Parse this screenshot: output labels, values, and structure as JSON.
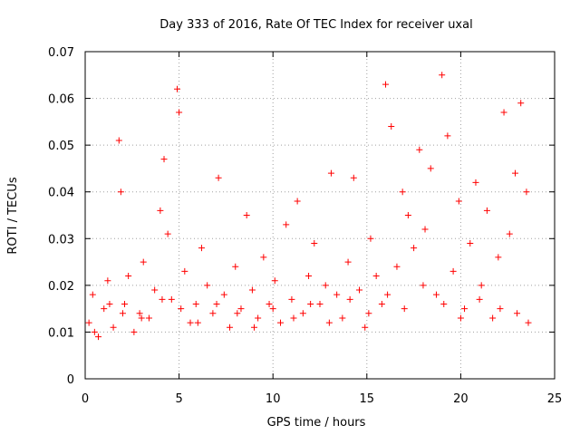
{
  "chart_data": {
    "type": "scatter",
    "title": "Day 333 of 2016, Rate Of TEC Index for receiver uxal",
    "xlabel": "GPS time / hours",
    "ylabel": "ROTI / TECUs",
    "xlim": [
      0,
      25
    ],
    "ylim": [
      0,
      0.07
    ],
    "x_ticks": [
      "0",
      "5",
      "10",
      "15",
      "20",
      "25"
    ],
    "y_ticks": [
      "0",
      "0.01",
      "0.02",
      "0.03",
      "0.04",
      "0.05",
      "0.06",
      "0.07"
    ],
    "grid": true,
    "marker": "+",
    "color": "#ff0000",
    "series": [
      {
        "x": [
          0.2,
          0.4,
          0.7,
          1.0,
          1.2,
          1.5,
          1.8,
          1.9,
          2.1,
          2.3,
          2.6,
          2.9,
          3.1,
          3.4,
          3.7,
          4.0,
          4.2,
          4.4,
          4.6,
          4.9,
          5.0,
          5.3,
          5.6,
          5.9,
          6.2,
          6.5,
          6.8,
          7.1,
          7.4,
          7.7,
          8.0,
          8.3,
          8.6,
          8.9,
          9.2,
          9.5,
          9.8,
          10.1,
          10.4,
          10.7,
          11.0,
          11.3,
          11.6,
          11.9,
          12.2,
          12.5,
          12.8,
          13.1,
          13.4,
          13.7,
          14.0,
          14.3,
          14.6,
          14.9,
          15.2,
          15.5,
          15.8,
          16.0,
          16.3,
          16.6,
          16.9,
          17.2,
          17.5,
          17.8,
          18.1,
          18.4,
          18.7,
          19.0,
          19.3,
          19.6,
          19.9,
          20.2,
          20.5,
          20.8,
          21.1,
          21.4,
          21.7,
          22.0,
          22.3,
          22.6,
          22.9,
          23.2,
          23.5,
          0.5,
          1.3,
          2.0,
          3.0,
          4.1,
          5.1,
          6.0,
          7.0,
          8.1,
          9.0,
          10.0,
          11.1,
          12.0,
          13.0,
          14.1,
          15.1,
          16.1,
          17.0,
          18.0,
          19.1,
          20.0,
          21.0,
          22.1,
          23.0,
          23.6
        ],
        "y": [
          0.012,
          0.018,
          0.009,
          0.015,
          0.021,
          0.011,
          0.051,
          0.04,
          0.016,
          0.022,
          0.01,
          0.014,
          0.025,
          0.013,
          0.019,
          0.036,
          0.047,
          0.031,
          0.017,
          0.062,
          0.057,
          0.023,
          0.012,
          0.016,
          0.028,
          0.02,
          0.014,
          0.043,
          0.018,
          0.011,
          0.024,
          0.015,
          0.035,
          0.019,
          0.013,
          0.026,
          0.016,
          0.021,
          0.012,
          0.033,
          0.017,
          0.038,
          0.014,
          0.022,
          0.029,
          0.016,
          0.02,
          0.044,
          0.018,
          0.013,
          0.025,
          0.043,
          0.019,
          0.011,
          0.03,
          0.022,
          0.016,
          0.063,
          0.054,
          0.024,
          0.04,
          0.035,
          0.028,
          0.049,
          0.032,
          0.045,
          0.018,
          0.065,
          0.052,
          0.023,
          0.038,
          0.015,
          0.029,
          0.042,
          0.02,
          0.036,
          0.013,
          0.026,
          0.057,
          0.031,
          0.044,
          0.059,
          0.04,
          0.01,
          0.016,
          0.014,
          0.013,
          0.017,
          0.015,
          0.012,
          0.016,
          0.014,
          0.011,
          0.015,
          0.013,
          0.016,
          0.012,
          0.017,
          0.014,
          0.018,
          0.015,
          0.02,
          0.016,
          0.013,
          0.017,
          0.015,
          0.014,
          0.012
        ]
      }
    ]
  }
}
